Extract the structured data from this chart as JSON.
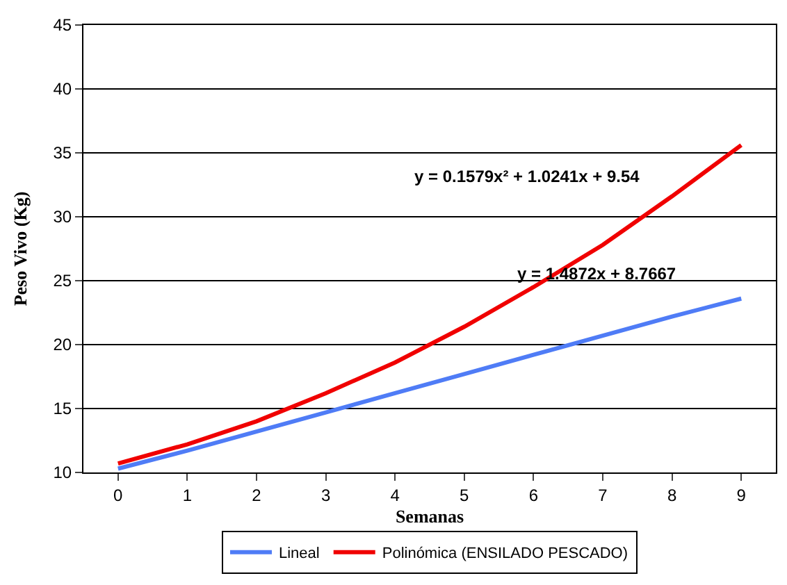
{
  "chart_data": {
    "type": "line",
    "xlabel": "Semanas",
    "ylabel": "Peso Vivo (Kg)",
    "x": [
      0,
      1,
      2,
      3,
      4,
      5,
      6,
      7,
      8,
      9
    ],
    "xlim": [
      -0.5,
      9.5
    ],
    "xticks": [
      0,
      1,
      2,
      3,
      4,
      5,
      6,
      7,
      8,
      9
    ],
    "ylim": [
      10,
      45
    ],
    "yticks": [
      10,
      15,
      20,
      25,
      30,
      35,
      40,
      45
    ],
    "grid": "y",
    "legend": "bottom",
    "marker": "none",
    "line_style": "solid",
    "series": [
      {
        "name": "Lineal",
        "color": "#4f7cf6",
        "values": [
          10.3,
          11.7,
          13.2,
          14.7,
          16.2,
          17.7,
          19.2,
          20.7,
          22.2,
          23.6
        ]
      },
      {
        "name": "Polinómica (ENSILADO PESCADO)",
        "color": "#f00000",
        "values": [
          10.7,
          12.2,
          14.0,
          16.2,
          18.6,
          21.4,
          24.5,
          27.8,
          31.6,
          35.6
        ]
      }
    ],
    "annotations": [
      "y = 0.1579x² + 1.0241x + 9.54",
      "y = 1.4872x + 8.7667"
    ]
  }
}
